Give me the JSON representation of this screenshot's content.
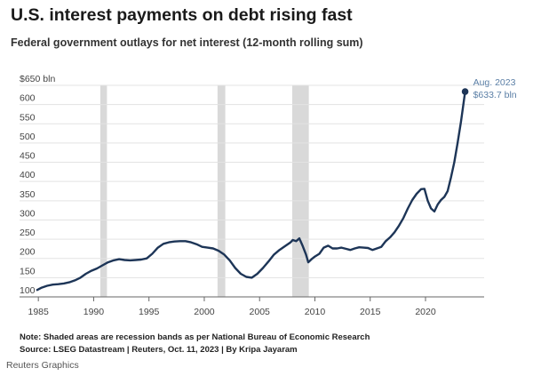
{
  "title": "U.S. interest payments on debt rising fast",
  "subtitle": "Federal government outlays for net interest (12-month rolling sum)",
  "note": "Note: Shaded areas are recession bands as per National Bureau of Economic Research",
  "source": "Source: LSEG Datastream | Reuters, Oct. 11, 2023 | By Kripa Jayaram",
  "credit": "Reuters Graphics",
  "chart_data": {
    "type": "line",
    "title": "U.S. interest payments on debt rising fast",
    "ylabel": "$650 bln",
    "xlim": [
      1983.3,
      2025.3
    ],
    "ylim": [
      100,
      650
    ],
    "x_ticks": [
      1985,
      1990,
      1995,
      2000,
      2005,
      2010,
      2015,
      2020
    ],
    "x_tick_labels": [
      "1985",
      "1990",
      "1995",
      "2000",
      "2005",
      "2010",
      "2015",
      "2020"
    ],
    "y_ticks": [
      100,
      150,
      200,
      250,
      300,
      350,
      400,
      450,
      500,
      550,
      600,
      650
    ],
    "y_tick_labels": [
      "100",
      "150",
      "200",
      "250",
      "300",
      "350",
      "400",
      "450",
      "500",
      "550",
      "600",
      "$650 bln"
    ],
    "grid": "horizontal",
    "line_color": "#1d3557",
    "recession_color": "#d9d9d9",
    "recessions": [
      [
        1990.6,
        1991.2
      ],
      [
        2001.2,
        2001.9
      ],
      [
        2007.95,
        2009.45
      ]
    ],
    "annotation": {
      "x": 2023.58,
      "y": 633.7,
      "line1": "Aug. 2023",
      "line2": "$633.7 bln",
      "color": "#5b7fa6"
    },
    "series": [
      {
        "x": [
          1984.9,
          1985.3,
          1985.8,
          1986.3,
          1986.8,
          1987.3,
          1987.8,
          1988.3,
          1988.8,
          1989.3,
          1989.8,
          1990.3,
          1990.8,
          1991.3,
          1991.8,
          1992.3,
          1992.8,
          1993.3,
          1993.8,
          1994.3,
          1994.8,
          1995.3,
          1995.8,
          1996.3,
          1996.8,
          1997.3,
          1997.8,
          1998.3,
          1998.8,
          1999.3,
          1999.8,
          2000.3,
          2000.8,
          2001.3,
          2001.8,
          2002.3,
          2002.8,
          2003.3,
          2003.8,
          2004.3,
          2004.8,
          2005.3,
          2005.8,
          2006.3,
          2006.8,
          2007.3,
          2007.8,
          2008.0,
          2008.3,
          2008.6,
          2008.9,
          2009.2,
          2009.4,
          2009.7,
          2010.0,
          2010.4,
          2010.8,
          2011.2,
          2011.6,
          2012.0,
          2012.4,
          2012.8,
          2013.2,
          2013.6,
          2014.0,
          2014.4,
          2014.8,
          2015.2,
          2015.6,
          2016.0,
          2016.4,
          2016.8,
          2017.2,
          2017.6,
          2018.0,
          2018.4,
          2018.8,
          2019.2,
          2019.6,
          2019.9,
          2020.2,
          2020.5,
          2020.8,
          2021.1,
          2021.4,
          2021.7,
          2022.0,
          2022.3,
          2022.6,
          2022.9,
          2023.2,
          2023.4,
          2023.58
        ],
        "y": [
          118,
          124,
          129,
          132,
          133,
          135,
          138,
          143,
          150,
          160,
          168,
          174,
          182,
          190,
          195,
          198,
          196,
          195,
          196,
          197,
          200,
          212,
          228,
          238,
          242,
          244,
          245,
          245,
          242,
          237,
          230,
          228,
          226,
          220,
          210,
          195,
          175,
          160,
          152,
          150,
          160,
          175,
          192,
          210,
          222,
          232,
          242,
          248,
          245,
          252,
          232,
          210,
          190,
          198,
          205,
          212,
          228,
          233,
          226,
          226,
          228,
          225,
          222,
          226,
          229,
          228,
          227,
          222,
          226,
          230,
          245,
          255,
          268,
          285,
          305,
          330,
          352,
          368,
          380,
          381,
          350,
          330,
          322,
          340,
          352,
          360,
          375,
          410,
          450,
          500,
          555,
          595,
          633.7
        ]
      }
    ]
  }
}
